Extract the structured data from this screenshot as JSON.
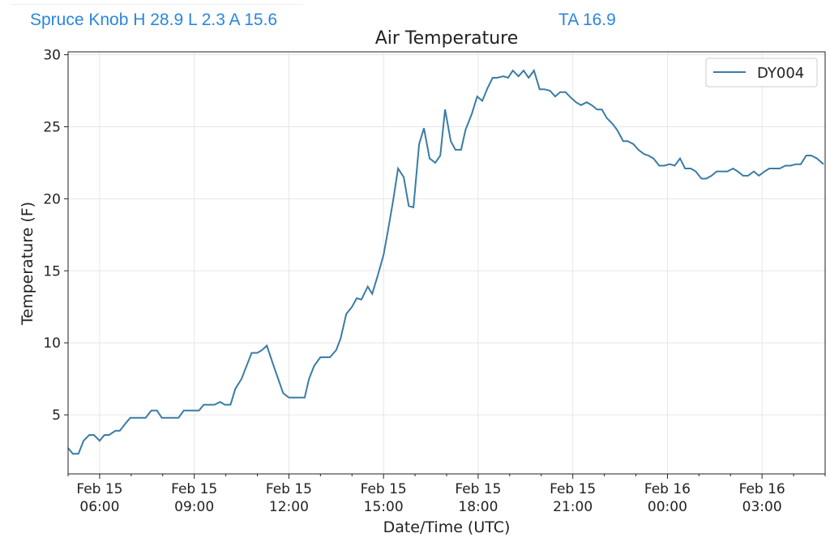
{
  "header": {
    "station_summary": "Spruce Knob H 28.9 L 2.3 A 15.6",
    "ta": "TA 16.9"
  },
  "chart_data": {
    "type": "line",
    "title": "Air Temperature",
    "xlabel": "Date/Time (UTC)",
    "ylabel": "Temperature (F)",
    "x_units": "hours since Feb 15 05:00 UTC",
    "xlim": [
      0,
      24
    ],
    "ylim": [
      0.9,
      30.2
    ],
    "grid": true,
    "legend_position": "top-right",
    "line_color": "#3a7ca5",
    "x_ticks": [
      {
        "value": 1,
        "line1": "Feb 15",
        "line2": "06:00"
      },
      {
        "value": 4,
        "line1": "Feb 15",
        "line2": "09:00"
      },
      {
        "value": 7,
        "line1": "Feb 15",
        "line2": "12:00"
      },
      {
        "value": 10,
        "line1": "Feb 15",
        "line2": "15:00"
      },
      {
        "value": 13,
        "line1": "Feb 15",
        "line2": "18:00"
      },
      {
        "value": 16,
        "line1": "Feb 15",
        "line2": "21:00"
      },
      {
        "value": 19,
        "line1": "Feb 16",
        "line2": "00:00"
      },
      {
        "value": 22,
        "line1": "Feb 16",
        "line2": "03:00"
      }
    ],
    "y_ticks": [
      5,
      10,
      15,
      20,
      25,
      30
    ],
    "series": [
      {
        "name": "DY004",
        "points": [
          [
            0,
            2.7
          ],
          [
            0.15,
            2.3
          ],
          [
            0.33,
            2.3
          ],
          [
            0.49,
            3.2
          ],
          [
            0.67,
            3.6
          ],
          [
            0.82,
            3.6
          ],
          [
            1.0,
            3.2
          ],
          [
            1.15,
            3.6
          ],
          [
            1.3,
            3.6
          ],
          [
            1.5,
            3.9
          ],
          [
            1.64,
            3.9
          ],
          [
            1.82,
            4.4
          ],
          [
            1.97,
            4.8
          ],
          [
            2.46,
            4.8
          ],
          [
            2.64,
            5.3
          ],
          [
            2.82,
            5.3
          ],
          [
            2.97,
            4.8
          ],
          [
            3.5,
            4.8
          ],
          [
            3.67,
            5.3
          ],
          [
            4.15,
            5.3
          ],
          [
            4.3,
            5.7
          ],
          [
            4.64,
            5.7
          ],
          [
            4.82,
            5.9
          ],
          [
            4.97,
            5.7
          ],
          [
            5.15,
            5.7
          ],
          [
            5.3,
            6.8
          ],
          [
            5.5,
            7.5
          ],
          [
            5.82,
            9.3
          ],
          [
            6.0,
            9.3
          ],
          [
            6.15,
            9.5
          ],
          [
            6.3,
            9.8
          ],
          [
            6.5,
            8.5
          ],
          [
            6.82,
            6.5
          ],
          [
            7.0,
            6.2
          ],
          [
            7.5,
            6.2
          ],
          [
            7.64,
            7.5
          ],
          [
            7.8,
            8.4
          ],
          [
            8.0,
            9.0
          ],
          [
            8.3,
            9.0
          ],
          [
            8.5,
            9.5
          ],
          [
            8.64,
            10.3
          ],
          [
            8.82,
            12.0
          ],
          [
            9.0,
            12.5
          ],
          [
            9.15,
            13.1
          ],
          [
            9.3,
            13.0
          ],
          [
            9.5,
            13.9
          ],
          [
            9.64,
            13.4
          ],
          [
            9.82,
            14.7
          ],
          [
            10.0,
            16.1
          ],
          [
            10.15,
            17.9
          ],
          [
            10.3,
            19.8
          ],
          [
            10.46,
            22.1
          ],
          [
            10.64,
            21.5
          ],
          [
            10.8,
            19.5
          ],
          [
            10.95,
            19.4
          ],
          [
            11.13,
            23.8
          ],
          [
            11.28,
            24.9
          ],
          [
            11.46,
            22.8
          ],
          [
            11.64,
            22.5
          ],
          [
            11.8,
            23.0
          ],
          [
            11.95,
            26.2
          ],
          [
            12.13,
            24.0
          ],
          [
            12.28,
            23.4
          ],
          [
            12.46,
            23.4
          ],
          [
            12.6,
            24.8
          ],
          [
            12.8,
            25.9
          ],
          [
            12.97,
            27.1
          ],
          [
            13.13,
            26.8
          ],
          [
            13.3,
            27.7
          ],
          [
            13.46,
            28.4
          ],
          [
            13.6,
            28.4
          ],
          [
            13.8,
            28.5
          ],
          [
            13.95,
            28.4
          ],
          [
            14.1,
            28.9
          ],
          [
            14.28,
            28.5
          ],
          [
            14.44,
            28.9
          ],
          [
            14.6,
            28.4
          ],
          [
            14.77,
            28.9
          ],
          [
            14.95,
            27.6
          ],
          [
            15.1,
            27.6
          ],
          [
            15.28,
            27.5
          ],
          [
            15.44,
            27.1
          ],
          [
            15.6,
            27.4
          ],
          [
            15.77,
            27.4
          ],
          [
            15.95,
            27.0
          ],
          [
            16.1,
            26.7
          ],
          [
            16.26,
            26.5
          ],
          [
            16.44,
            26.7
          ],
          [
            16.6,
            26.5
          ],
          [
            16.77,
            26.2
          ],
          [
            16.92,
            26.2
          ],
          [
            17.08,
            25.6
          ],
          [
            17.26,
            25.2
          ],
          [
            17.4,
            24.8
          ],
          [
            17.6,
            24.0
          ],
          [
            17.74,
            24.0
          ],
          [
            17.92,
            23.8
          ],
          [
            18.08,
            23.4
          ],
          [
            18.26,
            23.1
          ],
          [
            18.4,
            23.0
          ],
          [
            18.56,
            22.8
          ],
          [
            18.74,
            22.3
          ],
          [
            18.9,
            22.3
          ],
          [
            19.08,
            22.4
          ],
          [
            19.23,
            22.3
          ],
          [
            19.4,
            22.8
          ],
          [
            19.56,
            22.1
          ],
          [
            19.74,
            22.1
          ],
          [
            19.9,
            21.9
          ],
          [
            20.08,
            21.4
          ],
          [
            20.23,
            21.4
          ],
          [
            20.4,
            21.6
          ],
          [
            20.56,
            21.9
          ],
          [
            20.9,
            21.9
          ],
          [
            21.08,
            22.1
          ],
          [
            21.23,
            21.9
          ],
          [
            21.4,
            21.6
          ],
          [
            21.56,
            21.6
          ],
          [
            21.74,
            21.9
          ],
          [
            21.9,
            21.6
          ],
          [
            22.08,
            21.9
          ],
          [
            22.23,
            22.1
          ],
          [
            22.56,
            22.1
          ],
          [
            22.74,
            22.3
          ],
          [
            22.9,
            22.3
          ],
          [
            23.08,
            22.4
          ],
          [
            23.23,
            22.4
          ],
          [
            23.4,
            23.0
          ],
          [
            23.56,
            23.0
          ],
          [
            23.74,
            22.8
          ],
          [
            23.95,
            22.4
          ]
        ]
      }
    ]
  }
}
